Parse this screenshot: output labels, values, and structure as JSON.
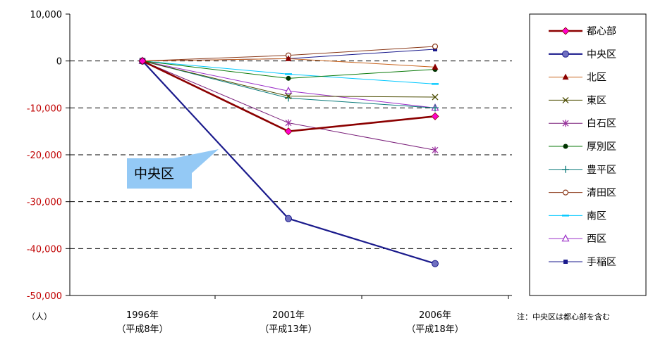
{
  "chart_data": {
    "type": "line",
    "x": [
      "1996年",
      "2001年",
      "2006年"
    ],
    "x_sublabels": [
      "（平成8年）",
      "（平成13年）",
      "（平成18年）"
    ],
    "y_unit": "（人）",
    "ylim": [
      -50000,
      10000
    ],
    "yticks": [
      10000,
      0,
      -10000,
      -20000,
      -30000,
      -40000,
      -50000
    ],
    "ytick_labels": [
      "10,000",
      "0",
      "-10,000",
      "-20,000",
      "-30,000",
      "-40,000",
      "-50,000"
    ],
    "negative_tick_color": "#c00000",
    "grid": "horizontal dashed",
    "legend_position": "right",
    "annotation": "中央区",
    "note": "注：中央区は都心部を含む",
    "series": [
      {
        "name": "都心部",
        "values": [
          0,
          -15000,
          -11800
        ],
        "color": "#8b0000",
        "marker": "diamond",
        "marker_color": "#ff00cc",
        "width": 2.6
      },
      {
        "name": "中央区",
        "values": [
          0,
          -33600,
          -43200
        ],
        "color": "#1a1a8c",
        "marker": "circle",
        "marker_color": "#7070c0",
        "width": 2.2
      },
      {
        "name": "北区",
        "values": [
          0,
          500,
          -1300
        ],
        "color": "#c8641e",
        "marker": "triangle",
        "marker_color": "#8b0000",
        "width": 1
      },
      {
        "name": "東区",
        "values": [
          0,
          -7500,
          -7700
        ],
        "color": "#4b4b00",
        "marker": "x",
        "marker_color": "#4b4b00",
        "width": 1
      },
      {
        "name": "白石区",
        "values": [
          0,
          -13200,
          -19000
        ],
        "color": "#7a1f7a",
        "marker": "star",
        "marker_color": "#9b30a0",
        "width": 1
      },
      {
        "name": "厚別区",
        "values": [
          0,
          -3700,
          -1800
        ],
        "color": "#0a7a0a",
        "marker": "filled-circle",
        "marker_color": "#003300",
        "width": 1
      },
      {
        "name": "豊平区",
        "values": [
          0,
          -7900,
          -10000
        ],
        "color": "#0a7a7a",
        "marker": "plus",
        "marker_color": "#0a7a7a",
        "width": 1
      },
      {
        "name": "清田区",
        "values": [
          0,
          1200,
          3100
        ],
        "color": "#8b3a1a",
        "marker": "open-circle",
        "marker_color": "#8b3a1a",
        "width": 1
      },
      {
        "name": "南区",
        "values": [
          0,
          -2800,
          -4900
        ],
        "color": "#00c8ff",
        "marker": "dash",
        "marker_color": "#00c8ff",
        "width": 1
      },
      {
        "name": "西区",
        "values": [
          0,
          -6400,
          -10000
        ],
        "color": "#9b30c8",
        "marker": "open-triangle",
        "marker_color": "#9b30c8",
        "width": 1
      },
      {
        "name": "手稲区",
        "values": [
          0,
          500,
          2500
        ],
        "color": "#1a1a8c",
        "marker": "square",
        "marker_color": "#1a1a8c",
        "width": 1
      }
    ]
  }
}
